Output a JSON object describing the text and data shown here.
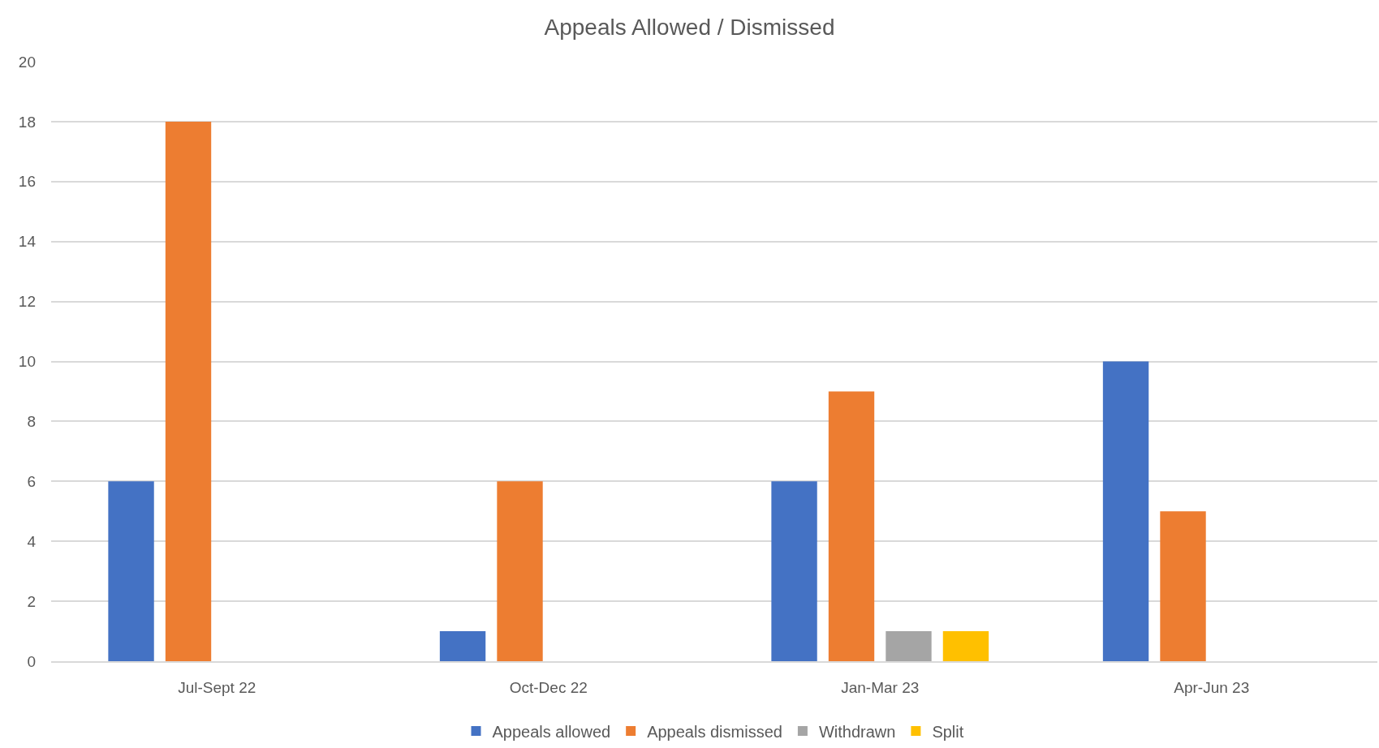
{
  "chart_data": {
    "type": "bar",
    "title": "Appeals Allowed / Dismissed",
    "categories": [
      "Jul-Sept 22",
      "Oct-Dec 22",
      "Jan-Mar 23",
      "Apr-Jun 23"
    ],
    "series": [
      {
        "name": "Appeals allowed",
        "color": "#4472c4",
        "values": [
          6,
          1,
          6,
          10
        ]
      },
      {
        "name": "Appeals dismissed",
        "color": "#ed7d31",
        "values": [
          18,
          6,
          9,
          5
        ]
      },
      {
        "name": "Withdrawn",
        "color": "#a5a5a5",
        "values": [
          null,
          null,
          1,
          null
        ]
      },
      {
        "name": "Split",
        "color": "#ffc000",
        "values": [
          null,
          null,
          1,
          null
        ]
      }
    ],
    "ylim": [
      0,
      20
    ],
    "yticks": [
      0,
      2,
      4,
      6,
      8,
      10,
      12,
      14,
      16,
      18,
      20
    ],
    "grid": "y",
    "legend": "bottom"
  }
}
